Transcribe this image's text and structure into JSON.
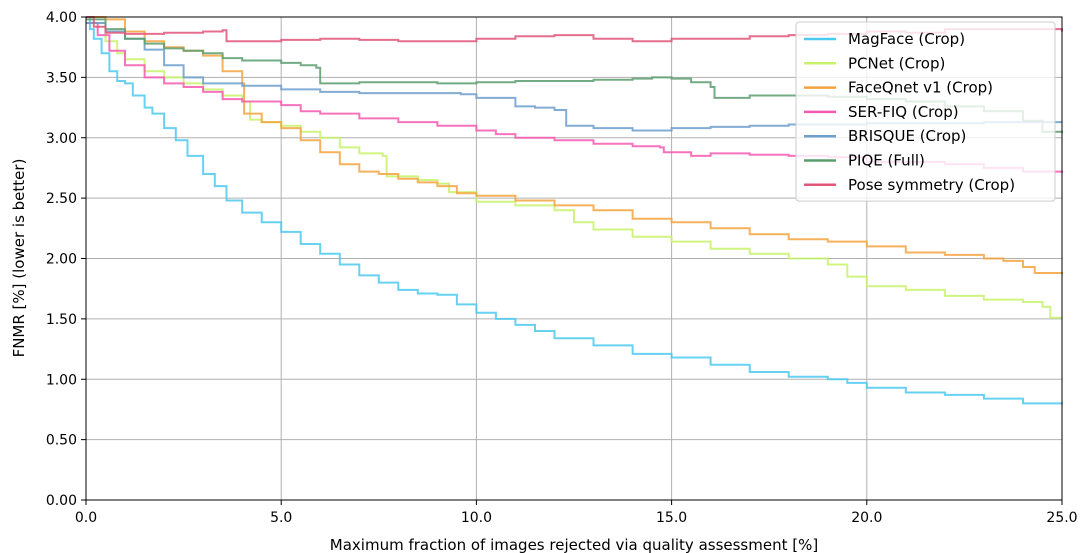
{
  "chart_data": {
    "type": "line",
    "title": "",
    "xlabel": "Maximum fraction of images rejected via quality assessment [%]",
    "ylabel": "FNMR [%] (lower is better)",
    "xlim": [
      0,
      25
    ],
    "ylim": [
      0,
      4
    ],
    "grid": true,
    "legend_position": "top-right",
    "x_ticks": [
      "0.0",
      "5.0",
      "10.0",
      "15.0",
      "20.0",
      "25.0"
    ],
    "y_ticks": [
      "0.00",
      "0.50",
      "1.00",
      "1.50",
      "2.00",
      "2.50",
      "3.00",
      "3.50",
      "4.00"
    ],
    "x_tick_values": [
      0,
      5,
      10,
      15,
      20,
      25
    ],
    "y_tick_values": [
      0,
      0.5,
      1,
      1.5,
      2,
      2.5,
      3,
      3.5,
      4
    ],
    "series": [
      {
        "name": "MagFace (Crop)",
        "color": "#4cc9f0",
        "points": [
          [
            0,
            4.0
          ],
          [
            0.1,
            3.9
          ],
          [
            0.2,
            3.82
          ],
          [
            0.4,
            3.7
          ],
          [
            0.6,
            3.55
          ],
          [
            0.8,
            3.47
          ],
          [
            1.0,
            3.45
          ],
          [
            1.2,
            3.35
          ],
          [
            1.5,
            3.25
          ],
          [
            1.7,
            3.2
          ],
          [
            2.0,
            3.08
          ],
          [
            2.3,
            2.98
          ],
          [
            2.6,
            2.85
          ],
          [
            3.0,
            2.7
          ],
          [
            3.3,
            2.6
          ],
          [
            3.6,
            2.48
          ],
          [
            4.0,
            2.38
          ],
          [
            4.5,
            2.3
          ],
          [
            5.0,
            2.22
          ],
          [
            5.5,
            2.12
          ],
          [
            6.0,
            2.04
          ],
          [
            6.5,
            1.95
          ],
          [
            7.0,
            1.86
          ],
          [
            7.5,
            1.8
          ],
          [
            8.0,
            1.74
          ],
          [
            8.5,
            1.71
          ],
          [
            9.0,
            1.7
          ],
          [
            9.5,
            1.62
          ],
          [
            10.0,
            1.55
          ],
          [
            10.5,
            1.5
          ],
          [
            11.0,
            1.45
          ],
          [
            11.5,
            1.4
          ],
          [
            12.0,
            1.34
          ],
          [
            13.0,
            1.28
          ],
          [
            14.0,
            1.21
          ],
          [
            15.0,
            1.18
          ],
          [
            16.0,
            1.12
          ],
          [
            17.0,
            1.06
          ],
          [
            18.0,
            1.02
          ],
          [
            19.0,
            1.0
          ],
          [
            19.5,
            0.97
          ],
          [
            20.0,
            0.93
          ],
          [
            21.0,
            0.89
          ],
          [
            22.0,
            0.87
          ],
          [
            23.0,
            0.84
          ],
          [
            24.0,
            0.8
          ],
          [
            25.0,
            0.79
          ]
        ]
      },
      {
        "name": "PCNet (Crop)",
        "color": "#c8f26a",
        "points": [
          [
            0,
            4.0
          ],
          [
            0.2,
            3.95
          ],
          [
            0.5,
            3.8
          ],
          [
            0.8,
            3.7
          ],
          [
            1.0,
            3.65
          ],
          [
            1.5,
            3.55
          ],
          [
            2.0,
            3.5
          ],
          [
            2.5,
            3.45
          ],
          [
            3.0,
            3.4
          ],
          [
            3.5,
            3.35
          ],
          [
            4.0,
            3.3
          ],
          [
            4.2,
            3.15
          ],
          [
            4.5,
            3.13
          ],
          [
            5.0,
            3.1
          ],
          [
            5.5,
            3.05
          ],
          [
            6.0,
            3.0
          ],
          [
            6.5,
            2.92
          ],
          [
            7.0,
            2.87
          ],
          [
            7.6,
            2.85
          ],
          [
            7.7,
            2.68
          ],
          [
            8.5,
            2.65
          ],
          [
            9.0,
            2.62
          ],
          [
            9.3,
            2.55
          ],
          [
            10.0,
            2.47
          ],
          [
            11.0,
            2.44
          ],
          [
            12.0,
            2.4
          ],
          [
            12.5,
            2.3
          ],
          [
            13.0,
            2.24
          ],
          [
            14.0,
            2.18
          ],
          [
            15.0,
            2.14
          ],
          [
            16.0,
            2.08
          ],
          [
            17.0,
            2.04
          ],
          [
            18.0,
            2.0
          ],
          [
            19.0,
            1.95
          ],
          [
            19.5,
            1.85
          ],
          [
            20.0,
            1.77
          ],
          [
            21.0,
            1.74
          ],
          [
            22.0,
            1.69
          ],
          [
            23.0,
            1.66
          ],
          [
            24.0,
            1.64
          ],
          [
            24.5,
            1.6
          ],
          [
            24.7,
            1.51
          ],
          [
            25.0,
            1.51
          ]
        ]
      },
      {
        "name": "FaceQnet v1 (Crop)",
        "color": "#f4a340",
        "points": [
          [
            0,
            4.0
          ],
          [
            0.5,
            3.98
          ],
          [
            1.0,
            3.88
          ],
          [
            1.5,
            3.8
          ],
          [
            2.0,
            3.75
          ],
          [
            2.5,
            3.72
          ],
          [
            3.0,
            3.68
          ],
          [
            3.5,
            3.55
          ],
          [
            4.0,
            3.45
          ],
          [
            4.05,
            3.2
          ],
          [
            4.5,
            3.13
          ],
          [
            5.0,
            3.08
          ],
          [
            5.5,
            2.98
          ],
          [
            6.0,
            2.88
          ],
          [
            6.5,
            2.78
          ],
          [
            7.0,
            2.72
          ],
          [
            7.5,
            2.7
          ],
          [
            8.0,
            2.66
          ],
          [
            8.5,
            2.63
          ],
          [
            9.0,
            2.6
          ],
          [
            9.5,
            2.54
          ],
          [
            10.0,
            2.52
          ],
          [
            11.0,
            2.48
          ],
          [
            12.0,
            2.44
          ],
          [
            13.0,
            2.4
          ],
          [
            14.0,
            2.33
          ],
          [
            15.0,
            2.3
          ],
          [
            16.0,
            2.25
          ],
          [
            17.0,
            2.2
          ],
          [
            18.0,
            2.16
          ],
          [
            19.0,
            2.14
          ],
          [
            20.0,
            2.1
          ],
          [
            21.0,
            2.05
          ],
          [
            22.0,
            2.03
          ],
          [
            23.0,
            2.0
          ],
          [
            23.5,
            1.98
          ],
          [
            24.0,
            1.93
          ],
          [
            24.3,
            1.88
          ],
          [
            25.0,
            1.87
          ]
        ]
      },
      {
        "name": "SER-FIQ (Crop)",
        "color": "#f45bb0",
        "points": [
          [
            0,
            3.95
          ],
          [
            0.3,
            3.85
          ],
          [
            0.6,
            3.72
          ],
          [
            1.0,
            3.6
          ],
          [
            1.5,
            3.5
          ],
          [
            2.0,
            3.45
          ],
          [
            2.5,
            3.42
          ],
          [
            3.0,
            3.38
          ],
          [
            3.5,
            3.32
          ],
          [
            4.0,
            3.3
          ],
          [
            5.0,
            3.27
          ],
          [
            5.5,
            3.22
          ],
          [
            6.0,
            3.2
          ],
          [
            7.0,
            3.16
          ],
          [
            8.0,
            3.13
          ],
          [
            9.0,
            3.1
          ],
          [
            10.0,
            3.06
          ],
          [
            10.5,
            3.03
          ],
          [
            11.0,
            3.0
          ],
          [
            12.0,
            2.98
          ],
          [
            13.0,
            2.95
          ],
          [
            14.0,
            2.93
          ],
          [
            14.7,
            2.92
          ],
          [
            14.8,
            2.88
          ],
          [
            15.5,
            2.85
          ],
          [
            16.0,
            2.87
          ],
          [
            17.0,
            2.86
          ],
          [
            18.0,
            2.85
          ],
          [
            19.0,
            2.84
          ],
          [
            20.0,
            2.8
          ],
          [
            21.0,
            2.8
          ],
          [
            22.0,
            2.78
          ],
          [
            23.0,
            2.75
          ],
          [
            24.0,
            2.72
          ],
          [
            25.0,
            2.71
          ]
        ]
      },
      {
        "name": "BRISQUE (Crop)",
        "color": "#6d9ecc",
        "points": [
          [
            0,
            3.95
          ],
          [
            0.5,
            3.88
          ],
          [
            1.0,
            3.82
          ],
          [
            1.5,
            3.73
          ],
          [
            2.0,
            3.6
          ],
          [
            2.5,
            3.5
          ],
          [
            3.0,
            3.45
          ],
          [
            4.0,
            3.43
          ],
          [
            5.0,
            3.4
          ],
          [
            6.0,
            3.38
          ],
          [
            7.0,
            3.37
          ],
          [
            8.0,
            3.37
          ],
          [
            9.0,
            3.37
          ],
          [
            9.6,
            3.36
          ],
          [
            10.0,
            3.33
          ],
          [
            11.0,
            3.26
          ],
          [
            11.5,
            3.25
          ],
          [
            12.0,
            3.23
          ],
          [
            12.3,
            3.1
          ],
          [
            13.0,
            3.08
          ],
          [
            14.0,
            3.06
          ],
          [
            15.0,
            3.08
          ],
          [
            16.0,
            3.09
          ],
          [
            17.0,
            3.1
          ],
          [
            18.0,
            3.11
          ],
          [
            19.0,
            3.11
          ],
          [
            20.0,
            3.12
          ],
          [
            21.0,
            3.12
          ],
          [
            22.0,
            3.12
          ],
          [
            23.0,
            3.13
          ],
          [
            24.0,
            3.13
          ],
          [
            25.0,
            3.13
          ]
        ]
      },
      {
        "name": "PIQE (Full)",
        "color": "#5a9e6f",
        "points": [
          [
            0,
            3.98
          ],
          [
            0.5,
            3.9
          ],
          [
            1.0,
            3.82
          ],
          [
            1.5,
            3.78
          ],
          [
            2.0,
            3.74
          ],
          [
            2.5,
            3.72
          ],
          [
            3.0,
            3.7
          ],
          [
            3.5,
            3.66
          ],
          [
            4.0,
            3.64
          ],
          [
            5.0,
            3.62
          ],
          [
            5.5,
            3.6
          ],
          [
            5.9,
            3.58
          ],
          [
            6.0,
            3.45
          ],
          [
            7.0,
            3.46
          ],
          [
            8.0,
            3.46
          ],
          [
            9.0,
            3.45
          ],
          [
            10.0,
            3.46
          ],
          [
            11.0,
            3.47
          ],
          [
            12.0,
            3.47
          ],
          [
            13.0,
            3.48
          ],
          [
            14.0,
            3.49
          ],
          [
            14.5,
            3.5
          ],
          [
            15.0,
            3.49
          ],
          [
            15.5,
            3.46
          ],
          [
            16.0,
            3.42
          ],
          [
            16.1,
            3.33
          ],
          [
            17.0,
            3.35
          ],
          [
            18.0,
            3.35
          ],
          [
            19.0,
            3.34
          ],
          [
            20.0,
            3.32
          ],
          [
            21.0,
            3.3
          ],
          [
            22.0,
            3.26
          ],
          [
            23.0,
            3.22
          ],
          [
            24.0,
            3.14
          ],
          [
            24.5,
            3.05
          ],
          [
            25.0,
            3.04
          ]
        ]
      },
      {
        "name": "Pose symmetry (Crop)",
        "color": "#e0557a",
        "points": [
          [
            0,
            4.0
          ],
          [
            0.2,
            3.92
          ],
          [
            0.5,
            3.87
          ],
          [
            1.0,
            3.86
          ],
          [
            2.0,
            3.87
          ],
          [
            3.0,
            3.88
          ],
          [
            3.5,
            3.89
          ],
          [
            3.6,
            3.8
          ],
          [
            5.0,
            3.81
          ],
          [
            6.0,
            3.82
          ],
          [
            7.0,
            3.81
          ],
          [
            8.0,
            3.8
          ],
          [
            9.0,
            3.8
          ],
          [
            10.0,
            3.82
          ],
          [
            11.0,
            3.84
          ],
          [
            12.0,
            3.85
          ],
          [
            13.0,
            3.82
          ],
          [
            14.0,
            3.8
          ],
          [
            15.0,
            3.82
          ],
          [
            16.0,
            3.82
          ],
          [
            17.0,
            3.84
          ],
          [
            18.0,
            3.85
          ],
          [
            19.0,
            3.86
          ],
          [
            20.0,
            3.88
          ],
          [
            21.0,
            3.87
          ],
          [
            22.0,
            3.9
          ],
          [
            23.0,
            3.9
          ],
          [
            24.0,
            3.9
          ],
          [
            25.0,
            3.88
          ]
        ]
      }
    ]
  }
}
